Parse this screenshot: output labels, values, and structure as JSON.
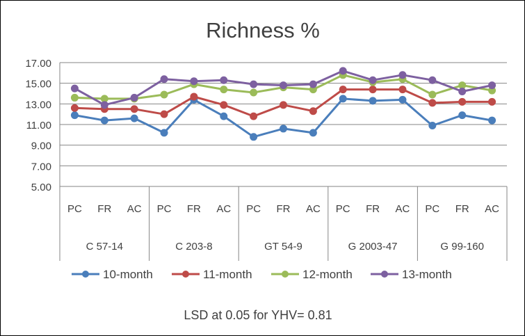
{
  "chart_data": {
    "type": "line",
    "title": "Richness %",
    "note": "LSD at 0.05 for YHV= 0.81",
    "xlabel": "",
    "ylabel": "",
    "ylim": [
      5,
      17
    ],
    "yticks": [
      "5.00",
      "7.00",
      "9.00",
      "11.00",
      "13.00",
      "15.00",
      "17.00"
    ],
    "grid": true,
    "legend_position": "bottom",
    "groups": [
      "C 57-14",
      "C 203-8",
      "GT 54-9",
      "G 2003-47",
      "G 99-160"
    ],
    "categories": [
      "PC",
      "FR",
      "AC",
      "PC",
      "FR",
      "AC",
      "PC",
      "FR",
      "AC",
      "PC",
      "FR",
      "AC",
      "PC",
      "FR",
      "AC"
    ],
    "series": [
      {
        "name": "10-month",
        "color": "#4a7ebb",
        "values": [
          11.9,
          11.4,
          11.6,
          10.2,
          13.4,
          11.8,
          9.8,
          10.6,
          10.2,
          13.5,
          13.3,
          13.4,
          10.9,
          11.9,
          11.4
        ]
      },
      {
        "name": "11-month",
        "color": "#be4b48",
        "values": [
          12.6,
          12.5,
          12.5,
          12.0,
          13.7,
          12.9,
          11.8,
          12.9,
          12.3,
          14.4,
          14.4,
          14.4,
          13.1,
          13.2,
          13.2
        ]
      },
      {
        "name": "12-month",
        "color": "#9bbb59",
        "values": [
          13.6,
          13.5,
          13.5,
          13.9,
          14.9,
          14.4,
          14.1,
          14.6,
          14.4,
          15.8,
          15.1,
          15.4,
          13.9,
          14.8,
          14.3
        ]
      },
      {
        "name": "13-month",
        "color": "#7d60a0",
        "values": [
          14.5,
          12.9,
          13.6,
          15.4,
          15.2,
          15.3,
          14.9,
          14.8,
          14.9,
          16.2,
          15.3,
          15.8,
          15.3,
          14.2,
          14.8
        ]
      }
    ]
  }
}
